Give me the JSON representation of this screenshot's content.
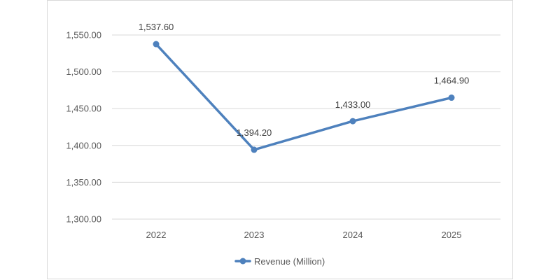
{
  "chart_data": {
    "type": "line",
    "categories": [
      "2022",
      "2023",
      "2024",
      "2025"
    ],
    "series": [
      {
        "name": "Revenue (Million)",
        "values": [
          1537.6,
          1394.2,
          1433.0,
          1464.9
        ],
        "data_labels": [
          "1,537.60",
          "1,394.20",
          "1,433.00",
          "1,464.90"
        ],
        "color": "#4e81bd"
      }
    ],
    "y_ticks": [
      1300,
      1350,
      1400,
      1450,
      1500,
      1550
    ],
    "y_tick_labels": [
      "1,300.00",
      "1,350.00",
      "1,400.00",
      "1,450.00",
      "1,500.00",
      "1,550.00"
    ],
    "ylim": [
      1300,
      1550
    ],
    "title": "",
    "xlabel": "",
    "ylabel": "",
    "grid": true,
    "gridline_color": "#d9d9d9",
    "legend": {
      "position": "bottom"
    }
  }
}
